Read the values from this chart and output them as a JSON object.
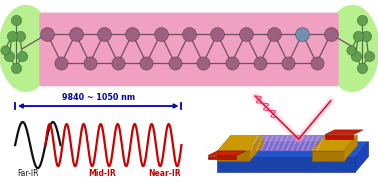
{
  "bg_color": "#ffffff",
  "top_rect_color": "#f0a0c0",
  "left_ellipse_color": "#b8f090",
  "right_ellipse_color": "#b8f090",
  "arrow_color": "#0000bb",
  "arrow_text": "9840 ~ 1050 nm",
  "arrow_text_color": "#0000bb",
  "far_ir_label": "Far-IR",
  "mid_ir_label": "Mid-IR",
  "near_ir_label": "Near-IR",
  "far_ir_color": "#111111",
  "mid_ir_color": "#cc0000",
  "near_ir_color": "#cc0000",
  "wave_black_color": "#111111",
  "wave_red_color": "#cc0000",
  "purple_atom": "#9c6080",
  "blue_atom": "#7090b0",
  "green_atom": "#60a050",
  "bond_color": "#705060",
  "dev_blue": "#2255cc",
  "dev_gold": "#cc9900",
  "dev_purple": "#8870c8",
  "dev_red": "#bb1100",
  "dev_pink_beam": "#ee6699",
  "dev_red_beam": "#cc1100"
}
